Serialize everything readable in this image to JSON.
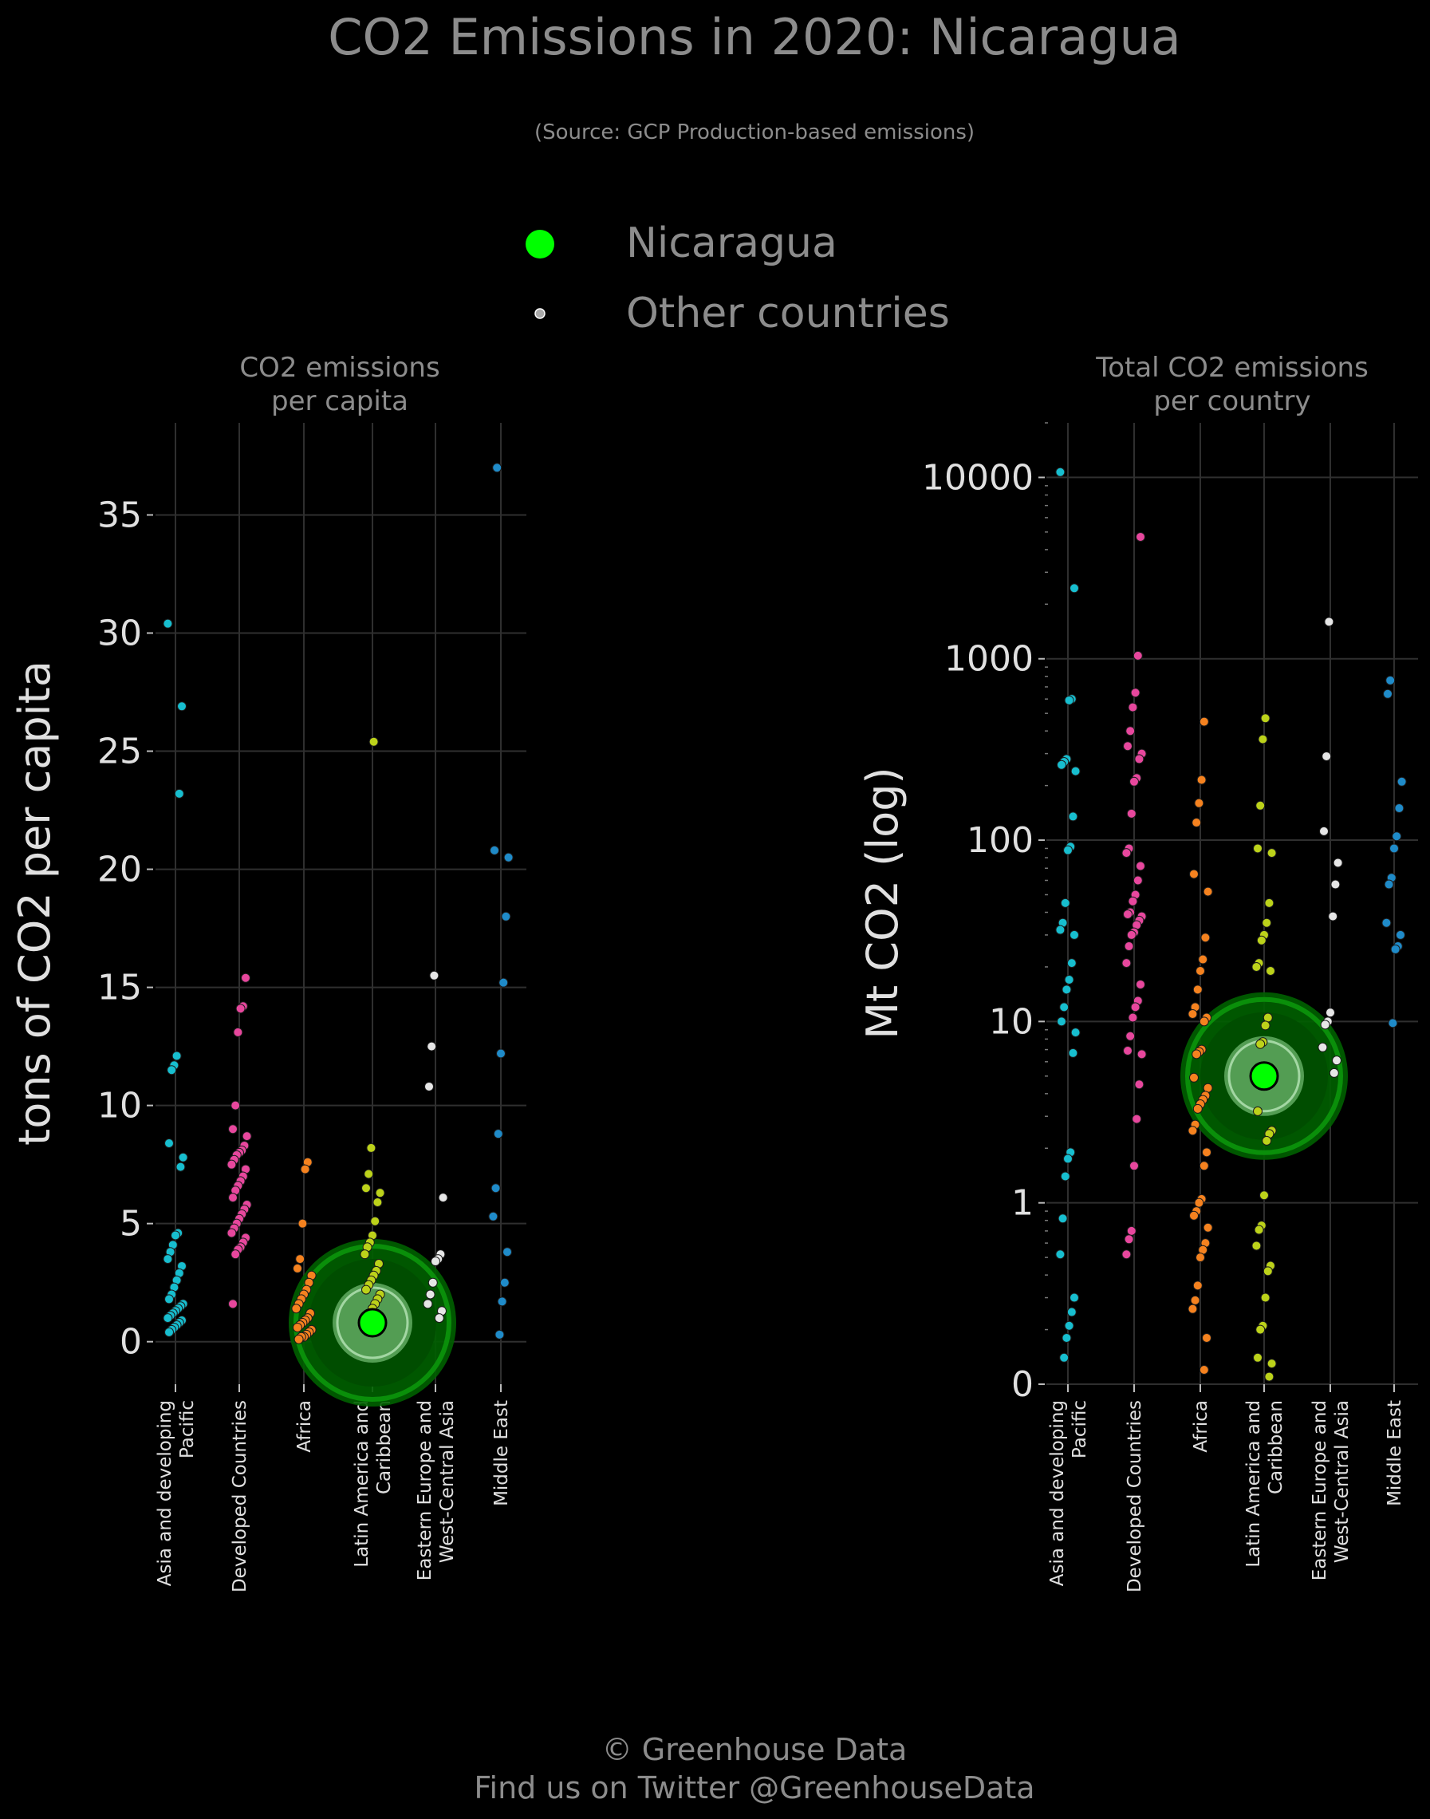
{
  "title": "CO2 Emissions in 2020: Nicaragua",
  "subtitle": "(Source: GCP Production-based emissions)",
  "legend": {
    "highlight_label": "Nicaragua",
    "others_label": "Other countries",
    "highlight_color": "#00ff00",
    "others_color": "#aaaaaa"
  },
  "footer": {
    "line1": "© Greenhouse Data",
    "line2": "Find us on Twitter @GreenhouseData"
  },
  "colors": {
    "background": "#000000",
    "grid": "#2f2f2f",
    "Asia and developing Pacific": "#17becf",
    "Developed Countries": "#e7479d",
    "Africa": "#f5821f",
    "Latin America and Caribbean": "#bcd21a",
    "Eastern Europe and West-Central Asia": "#e6e6e6",
    "Middle East": "#1f8bc9"
  },
  "chart_data": [
    {
      "type": "scatter",
      "title": "CO2 emissions\nper capita",
      "ylabel": "tons of CO2 per capita",
      "yscale": "linear",
      "ylim": [
        -1.8,
        38.9
      ],
      "yticks": [
        0,
        5,
        10,
        15,
        20,
        25,
        30,
        35
      ],
      "ytick_labels": [
        "0",
        "5",
        "10",
        "15",
        "20",
        "25",
        "30",
        "35"
      ],
      "grid": true,
      "categories": [
        "Asia and developing\nPacific",
        "Developed Countries",
        "Africa",
        "Latin America and\nCaribbean",
        "Eastern Europe and\nWest-Central Asia",
        "Middle East"
      ],
      "series": [
        {
          "category": 0,
          "values": [
            30.4,
            26.9,
            23.2,
            12.1,
            11.7,
            11.5,
            8.4,
            7.8,
            7.4,
            4.6,
            4.5,
            4.1,
            3.8,
            3.5,
            3.2,
            2.9,
            2.6,
            2.3,
            2.0,
            1.8,
            1.6,
            1.5,
            1.4,
            1.3,
            1.2,
            1.1,
            1.0,
            0.9,
            0.8,
            0.7,
            0.6,
            0.5,
            0.4
          ]
        },
        {
          "category": 1,
          "values": [
            15.4,
            14.2,
            14.1,
            13.1,
            10.0,
            9.0,
            8.7,
            8.3,
            8.1,
            8.0,
            7.9,
            7.7,
            7.5,
            7.3,
            7.0,
            6.8,
            6.6,
            6.4,
            6.1,
            5.8,
            5.6,
            5.4,
            5.2,
            5.0,
            4.8,
            4.6,
            4.4,
            4.2,
            4.0,
            3.9,
            3.7,
            1.6
          ]
        },
        {
          "category": 2,
          "values": [
            7.6,
            7.3,
            5.0,
            3.5,
            3.1,
            2.8,
            2.5,
            2.2,
            2.0,
            1.8,
            1.6,
            1.4,
            1.2,
            1.0,
            0.9,
            0.8,
            0.7,
            0.6,
            0.5,
            0.4,
            0.3,
            0.2,
            0.2,
            0.1
          ]
        },
        {
          "category": 3,
          "values": [
            25.4,
            8.2,
            7.1,
            6.5,
            6.3,
            5.9,
            5.1,
            4.5,
            4.2,
            4.0,
            3.7,
            3.3,
            3.0,
            2.8,
            2.6,
            2.4,
            2.2,
            2.0,
            1.8,
            1.6,
            1.4
          ]
        },
        {
          "category": 4,
          "values": [
            15.5,
            12.5,
            10.8,
            6.1,
            3.7,
            3.5,
            3.4,
            2.5,
            2.0,
            1.6,
            1.3,
            1.0
          ]
        },
        {
          "category": 5,
          "values": [
            37.0,
            20.8,
            20.5,
            18.0,
            15.2,
            12.2,
            8.8,
            6.5,
            5.3,
            3.8,
            2.5,
            1.7,
            0.3
          ]
        }
      ],
      "highlight": {
        "name": "Nicaragua",
        "category": 3,
        "value": 0.8
      }
    },
    {
      "type": "scatter",
      "title": "Total CO2 emissions\nper country",
      "ylabel": "Mt CO2 (log)",
      "yscale": "log",
      "ylim": [
        0.1,
        20000
      ],
      "yticks": [
        0.1,
        1,
        10,
        100,
        1000,
        10000
      ],
      "ytick_labels": [
        "0",
        "1",
        "10",
        "100",
        "1000",
        "10000"
      ],
      "grid": true,
      "categories": [
        "Asia and developing\nPacific",
        "Developed Countries",
        "Africa",
        "Latin America and\nCaribbean",
        "Eastern Europe and\nWest-Central Asia",
        "Middle East"
      ],
      "series": [
        {
          "category": 0,
          "values": [
            10700,
            2450,
            600,
            590,
            280,
            270,
            260,
            240,
            135,
            92,
            88,
            45,
            35,
            32,
            30,
            21,
            17,
            15,
            12,
            10,
            8.7,
            6.7,
            1.9,
            1.75,
            1.4,
            0.82,
            0.52,
            0.3,
            0.25,
            0.21,
            0.18,
            0.14
          ]
        },
        {
          "category": 1,
          "values": [
            4700,
            1040,
            650,
            540,
            400,
            330,
            300,
            280,
            220,
            210,
            140,
            90,
            85,
            72,
            60,
            50,
            46,
            40,
            39,
            38,
            36,
            34,
            31,
            30,
            26,
            21,
            16,
            13,
            12,
            10.5,
            8.3,
            6.9,
            6.6,
            4.5,
            2.9,
            1.6,
            0.7,
            0.63,
            0.52
          ]
        },
        {
          "category": 2,
          "values": [
            450,
            215,
            160,
            125,
            65,
            52,
            29,
            22,
            19,
            15,
            12,
            11,
            10.5,
            10,
            7,
            6.8,
            6.6,
            4.9,
            4.3,
            3.9,
            3.7,
            3.5,
            3.3,
            2.7,
            2.5,
            1.9,
            1.6,
            1.05,
            1.0,
            0.9,
            0.85,
            0.73,
            0.6,
            0.55,
            0.5,
            0.35,
            0.29,
            0.26,
            0.18,
            0.12
          ]
        },
        {
          "category": 3,
          "values": [
            470,
            360,
            155,
            90,
            85,
            45,
            35,
            30,
            28,
            21,
            20,
            19,
            10.5,
            9.5,
            7.7,
            7.5,
            3.2,
            2.5,
            2.4,
            2.2,
            1.1,
            0.75,
            0.71,
            0.58,
            0.45,
            0.42,
            0.3,
            0.21,
            0.2,
            0.14,
            0.13,
            0.11
          ]
        },
        {
          "category": 4,
          "values": [
            1600,
            290,
            112,
            75,
            57,
            38,
            11.2,
            10,
            9.6,
            7.2,
            6.1,
            5.2
          ]
        },
        {
          "category": 5,
          "values": [
            760,
            640,
            210,
            150,
            105,
            90,
            62,
            57,
            35,
            30,
            26,
            25,
            9.8
          ]
        }
      ],
      "highlight": {
        "name": "Nicaragua",
        "category": 3,
        "value": 5.0
      }
    }
  ]
}
